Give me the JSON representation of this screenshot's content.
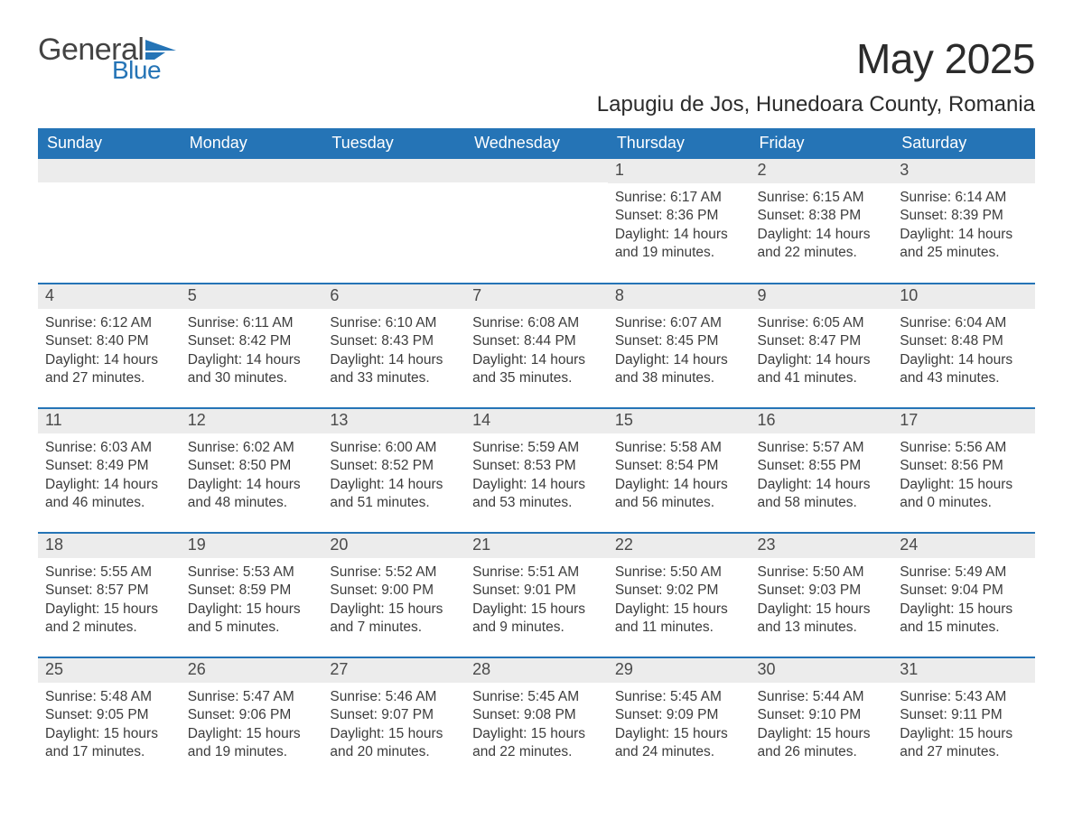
{
  "logo": {
    "word1": "General",
    "word2": "Blue",
    "text_color_word1": "#434343",
    "text_color_word2": "#2574b6",
    "flag_color": "#2574b6"
  },
  "title": "May 2025",
  "location": "Lapugiu de Jos, Hunedoara County, Romania",
  "colors": {
    "header_bg": "#2574b6",
    "header_text": "#ffffff",
    "daynum_bg": "#ececec",
    "row_divider": "#2574b6",
    "body_text": "#3c3c3c"
  },
  "weekday_labels": [
    "Sunday",
    "Monday",
    "Tuesday",
    "Wednesday",
    "Thursday",
    "Friday",
    "Saturday"
  ],
  "weeks": [
    [
      null,
      null,
      null,
      null,
      {
        "n": 1,
        "sunrise": "6:17 AM",
        "sunset": "8:36 PM",
        "daylight": "14 hours and 19 minutes."
      },
      {
        "n": 2,
        "sunrise": "6:15 AM",
        "sunset": "8:38 PM",
        "daylight": "14 hours and 22 minutes."
      },
      {
        "n": 3,
        "sunrise": "6:14 AM",
        "sunset": "8:39 PM",
        "daylight": "14 hours and 25 minutes."
      }
    ],
    [
      {
        "n": 4,
        "sunrise": "6:12 AM",
        "sunset": "8:40 PM",
        "daylight": "14 hours and 27 minutes."
      },
      {
        "n": 5,
        "sunrise": "6:11 AM",
        "sunset": "8:42 PM",
        "daylight": "14 hours and 30 minutes."
      },
      {
        "n": 6,
        "sunrise": "6:10 AM",
        "sunset": "8:43 PM",
        "daylight": "14 hours and 33 minutes."
      },
      {
        "n": 7,
        "sunrise": "6:08 AM",
        "sunset": "8:44 PM",
        "daylight": "14 hours and 35 minutes."
      },
      {
        "n": 8,
        "sunrise": "6:07 AM",
        "sunset": "8:45 PM",
        "daylight": "14 hours and 38 minutes."
      },
      {
        "n": 9,
        "sunrise": "6:05 AM",
        "sunset": "8:47 PM",
        "daylight": "14 hours and 41 minutes."
      },
      {
        "n": 10,
        "sunrise": "6:04 AM",
        "sunset": "8:48 PM",
        "daylight": "14 hours and 43 minutes."
      }
    ],
    [
      {
        "n": 11,
        "sunrise": "6:03 AM",
        "sunset": "8:49 PM",
        "daylight": "14 hours and 46 minutes."
      },
      {
        "n": 12,
        "sunrise": "6:02 AM",
        "sunset": "8:50 PM",
        "daylight": "14 hours and 48 minutes."
      },
      {
        "n": 13,
        "sunrise": "6:00 AM",
        "sunset": "8:52 PM",
        "daylight": "14 hours and 51 minutes."
      },
      {
        "n": 14,
        "sunrise": "5:59 AM",
        "sunset": "8:53 PM",
        "daylight": "14 hours and 53 minutes."
      },
      {
        "n": 15,
        "sunrise": "5:58 AM",
        "sunset": "8:54 PM",
        "daylight": "14 hours and 56 minutes."
      },
      {
        "n": 16,
        "sunrise": "5:57 AM",
        "sunset": "8:55 PM",
        "daylight": "14 hours and 58 minutes."
      },
      {
        "n": 17,
        "sunrise": "5:56 AM",
        "sunset": "8:56 PM",
        "daylight": "15 hours and 0 minutes."
      }
    ],
    [
      {
        "n": 18,
        "sunrise": "5:55 AM",
        "sunset": "8:57 PM",
        "daylight": "15 hours and 2 minutes."
      },
      {
        "n": 19,
        "sunrise": "5:53 AM",
        "sunset": "8:59 PM",
        "daylight": "15 hours and 5 minutes."
      },
      {
        "n": 20,
        "sunrise": "5:52 AM",
        "sunset": "9:00 PM",
        "daylight": "15 hours and 7 minutes."
      },
      {
        "n": 21,
        "sunrise": "5:51 AM",
        "sunset": "9:01 PM",
        "daylight": "15 hours and 9 minutes."
      },
      {
        "n": 22,
        "sunrise": "5:50 AM",
        "sunset": "9:02 PM",
        "daylight": "15 hours and 11 minutes."
      },
      {
        "n": 23,
        "sunrise": "5:50 AM",
        "sunset": "9:03 PM",
        "daylight": "15 hours and 13 minutes."
      },
      {
        "n": 24,
        "sunrise": "5:49 AM",
        "sunset": "9:04 PM",
        "daylight": "15 hours and 15 minutes."
      }
    ],
    [
      {
        "n": 25,
        "sunrise": "5:48 AM",
        "sunset": "9:05 PM",
        "daylight": "15 hours and 17 minutes."
      },
      {
        "n": 26,
        "sunrise": "5:47 AM",
        "sunset": "9:06 PM",
        "daylight": "15 hours and 19 minutes."
      },
      {
        "n": 27,
        "sunrise": "5:46 AM",
        "sunset": "9:07 PM",
        "daylight": "15 hours and 20 minutes."
      },
      {
        "n": 28,
        "sunrise": "5:45 AM",
        "sunset": "9:08 PM",
        "daylight": "15 hours and 22 minutes."
      },
      {
        "n": 29,
        "sunrise": "5:45 AM",
        "sunset": "9:09 PM",
        "daylight": "15 hours and 24 minutes."
      },
      {
        "n": 30,
        "sunrise": "5:44 AM",
        "sunset": "9:10 PM",
        "daylight": "15 hours and 26 minutes."
      },
      {
        "n": 31,
        "sunrise": "5:43 AM",
        "sunset": "9:11 PM",
        "daylight": "15 hours and 27 minutes."
      }
    ]
  ],
  "labels": {
    "sunrise_prefix": "Sunrise: ",
    "sunset_prefix": "Sunset: ",
    "daylight_prefix": "Daylight: "
  }
}
